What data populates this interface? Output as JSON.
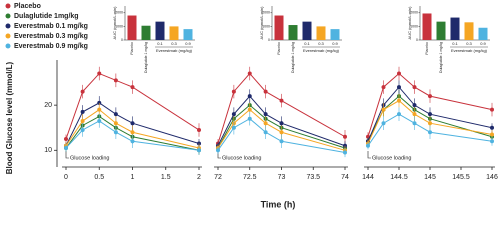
{
  "chart_data": {
    "type": "line",
    "ylabel": "Blood Glucose level (mmol/L)",
    "xlabel": "Time (h)",
    "ylim": [
      6.3,
      30
    ],
    "yticks": [
      10,
      20
    ],
    "series": [
      {
        "name": "Placebo",
        "color": "#c8323c"
      },
      {
        "name": "Dulaglutide 1mg/kg",
        "color": "#2e7d32"
      },
      {
        "name": "Everestmab 0.1 mg/kg",
        "color": "#1f2a6b"
      },
      {
        "name": "Everestmab 0.3 mg/kg",
        "color": "#f5a623"
      },
      {
        "name": "Everestmab 0.9 mg/kg",
        "color": "#4fb3e0"
      }
    ],
    "panels": [
      {
        "x": [
          0,
          0.25,
          0.5,
          0.75,
          1,
          2
        ],
        "xlim": [
          0,
          2
        ],
        "xticks": [
          0,
          0.5,
          1,
          1.5,
          2
        ],
        "annotation": "Glucose loading",
        "series": [
          {
            "values": [
              12.5,
              23,
              27,
              25.5,
              24,
              14.5
            ],
            "errors": [
              1,
              1.5,
              1.5,
              1.5,
              1.5,
              1.5
            ]
          },
          {
            "values": [
              10.5,
              15.5,
              17.5,
              15,
              13,
              10
            ],
            "errors": [
              0.8,
              1.5,
              1.5,
              1.5,
              1.5,
              1
            ]
          },
          {
            "values": [
              11,
              18.5,
              20.5,
              18,
              16,
              11.5
            ],
            "errors": [
              0.8,
              1.5,
              1.5,
              1.5,
              1.5,
              1
            ]
          },
          {
            "values": [
              11,
              16.5,
              19,
              16,
              14,
              10.5
            ],
            "errors": [
              0.8,
              1.5,
              1.5,
              1.5,
              1.5,
              1
            ]
          },
          {
            "values": [
              10.5,
              14.5,
              16.5,
              14,
              12,
              10
            ],
            "errors": [
              0.8,
              1.5,
              1.5,
              1.5,
              1.5,
              1
            ]
          }
        ],
        "inset": {
          "ylabel": "AUC (mmol/L.min)",
          "categories": [
            "Placebo",
            "Dulaglutide 1 mg/kg",
            "0.1",
            "0.3",
            "0.9"
          ],
          "group_label": "Everestmab (mg/kg)",
          "values": [
            1800,
            1050,
            1350,
            1000,
            800
          ],
          "ylim": [
            0,
            2500
          ],
          "yticks": [
            0,
            1000,
            2000
          ]
        }
      },
      {
        "x": [
          72,
          72.25,
          72.5,
          72.75,
          73,
          74
        ],
        "xlim": [
          72,
          74
        ],
        "xticks": [
          72,
          72.5,
          73,
          73.5,
          74
        ],
        "annotation": "Glucose loading",
        "series": [
          {
            "values": [
              11.5,
              23,
              27,
              23,
              21,
              13
            ],
            "errors": [
              1,
              1.5,
              1.5,
              1.5,
              1.5,
              1.5
            ]
          },
          {
            "values": [
              10.5,
              17,
              20,
              17,
              15,
              10.5
            ],
            "errors": [
              0.8,
              1.5,
              1.5,
              1.5,
              1.5,
              1
            ]
          },
          {
            "values": [
              11,
              18,
              22,
              18,
              16,
              11
            ],
            "errors": [
              0.8,
              1.5,
              1.5,
              1.5,
              1.5,
              1
            ]
          },
          {
            "values": [
              10.5,
              16,
              19,
              16,
              14,
              10
            ],
            "errors": [
              0.8,
              1.5,
              1.5,
              1.5,
              1.5,
              1
            ]
          },
          {
            "values": [
              10,
              15,
              17,
              14,
              12,
              9.5
            ],
            "errors": [
              0.8,
              1.5,
              1.5,
              1.5,
              1.5,
              1
            ]
          }
        ],
        "inset": {
          "ylabel": "AUC (mmol/L.min)",
          "categories": [
            "Placebo",
            "Dulaglutide 1 mg/kg",
            "0.1",
            "0.3",
            "0.9"
          ],
          "group_label": "Everestmab (mg/kg)",
          "values": [
            1800,
            1100,
            1350,
            1000,
            800
          ],
          "ylim": [
            0,
            2500
          ],
          "yticks": [
            0,
            1000,
            2000
          ]
        }
      },
      {
        "x": [
          144,
          144.25,
          144.5,
          144.75,
          145,
          146
        ],
        "xlim": [
          144,
          146
        ],
        "xticks": [
          144,
          144.5,
          145,
          145.5,
          146
        ],
        "annotation": "Glucose loading",
        "series": [
          {
            "values": [
              13,
              24,
              27,
              24,
              22,
              19
            ],
            "errors": [
              1,
              1.5,
              1.5,
              1.5,
              1.5,
              1.5
            ]
          },
          {
            "values": [
              12,
              19,
              22,
              19,
              17,
              13
            ],
            "errors": [
              0.8,
              1.5,
              1.5,
              1.5,
              1.5,
              1
            ]
          },
          {
            "values": [
              12,
              20,
              24,
              20,
              18,
              15
            ],
            "errors": [
              0.8,
              1.5,
              1.5,
              1.5,
              1.5,
              1
            ]
          },
          {
            "values": [
              11.5,
              19,
              21,
              18,
              16,
              13.5
            ],
            "errors": [
              0.8,
              1.5,
              1.5,
              1.5,
              1.5,
              1
            ]
          },
          {
            "values": [
              11,
              16,
              18,
              16,
              14,
              12
            ],
            "errors": [
              0.8,
              1.5,
              1.5,
              1.5,
              1.5,
              1
            ]
          }
        ],
        "inset": {
          "ylabel": "AUC (mmol/L.min)",
          "categories": [
            "Placebo",
            "Dulaglutide 1 mg/kg",
            "0.1",
            "0.3",
            "0.9"
          ],
          "group_label": "Everestmab (mg/kg)",
          "values": [
            1950,
            1350,
            1650,
            1300,
            900
          ],
          "ylim": [
            0,
            2500
          ],
          "yticks": [
            0,
            1000,
            2000
          ]
        }
      }
    ]
  }
}
